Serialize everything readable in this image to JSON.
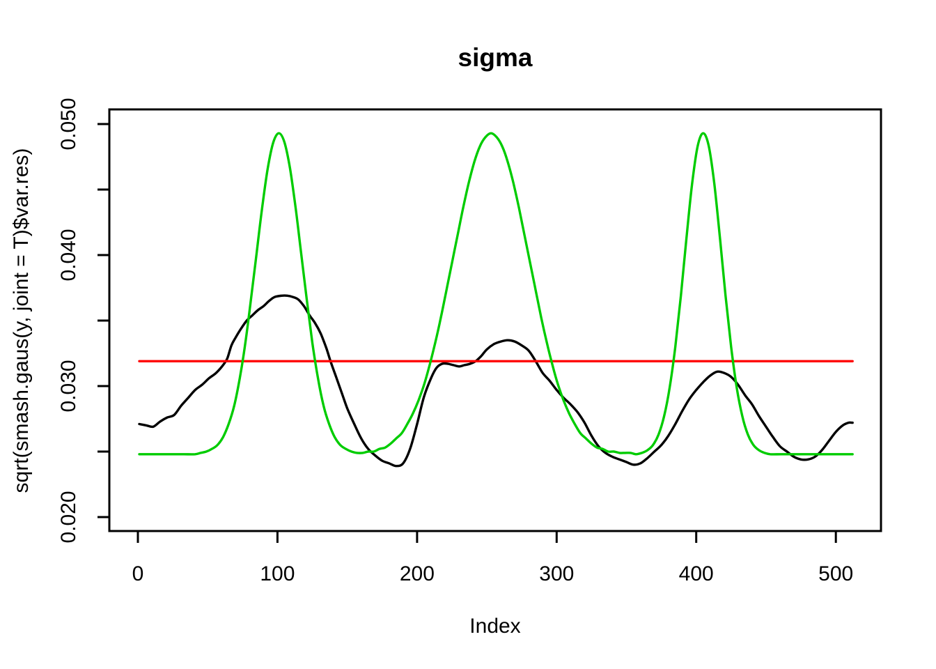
{
  "window": {
    "background": "#ffffff"
  },
  "chart_data": {
    "type": "line",
    "title": "sigma",
    "xlabel": "Index",
    "ylabel": "sqrt(smash.gaus(y, joint = T)$var.res)",
    "grid": false,
    "legend": "none",
    "axes": {
      "x": {
        "range": [
          -20.5,
          532.6
        ],
        "ticks": [
          {
            "value": 0,
            "label": "0"
          },
          {
            "value": 100,
            "label": "100"
          },
          {
            "value": 200,
            "label": "200"
          },
          {
            "value": 300,
            "label": "300"
          },
          {
            "value": 400,
            "label": "400"
          },
          {
            "value": 500,
            "label": "500"
          }
        ]
      },
      "y": {
        "range": [
          0.0189,
          0.0511
        ],
        "tick_marks": [
          0.02,
          0.025,
          0.03,
          0.035,
          0.04,
          0.045,
          0.05
        ],
        "labeled_ticks": [
          {
            "value": 0.02,
            "label": "0.020"
          },
          {
            "value": 0.03,
            "label": "0.030"
          },
          {
            "value": 0.04,
            "label": "0.040"
          },
          {
            "value": 0.05,
            "label": "0.050"
          }
        ]
      }
    },
    "series": [
      {
        "name": "black-estimated-sigma-line",
        "color": "#000000",
        "points": [
          [
            1,
            0.0271
          ],
          [
            6,
            0.027
          ],
          [
            11,
            0.0269
          ],
          [
            16,
            0.0273
          ],
          [
            21,
            0.0276
          ],
          [
            26,
            0.0278
          ],
          [
            31,
            0.0285
          ],
          [
            36,
            0.0291
          ],
          [
            41,
            0.0297
          ],
          [
            46,
            0.0301
          ],
          [
            51,
            0.0306
          ],
          [
            56,
            0.031
          ],
          [
            61,
            0.0316
          ],
          [
            64,
            0.0321
          ],
          [
            67,
            0.0331
          ],
          [
            70,
            0.0337
          ],
          [
            74,
            0.0344
          ],
          [
            78,
            0.035
          ],
          [
            82,
            0.0354
          ],
          [
            86,
            0.0358
          ],
          [
            90,
            0.0361
          ],
          [
            94,
            0.0365
          ],
          [
            98,
            0.0368
          ],
          [
            103,
            0.0369
          ],
          [
            107,
            0.0369
          ],
          [
            111,
            0.0368
          ],
          [
            115,
            0.0366
          ],
          [
            119,
            0.0361
          ],
          [
            123,
            0.0354
          ],
          [
            127,
            0.0348
          ],
          [
            131,
            0.034
          ],
          [
            135,
            0.0329
          ],
          [
            138,
            0.0319
          ],
          [
            142,
            0.0307
          ],
          [
            146,
            0.0295
          ],
          [
            150,
            0.0283
          ],
          [
            155,
            0.0271
          ],
          [
            160,
            0.026
          ],
          [
            165,
            0.0252
          ],
          [
            170,
            0.0247
          ],
          [
            175,
            0.0243
          ],
          [
            180,
            0.0241
          ],
          [
            185,
            0.0239
          ],
          [
            190,
            0.0241
          ],
          [
            195,
            0.0252
          ],
          [
            200,
            0.0271
          ],
          [
            205,
            0.0292
          ],
          [
            210,
            0.0306
          ],
          [
            214,
            0.0314
          ],
          [
            218,
            0.0317
          ],
          [
            222,
            0.0317
          ],
          [
            226,
            0.0316
          ],
          [
            230,
            0.0315
          ],
          [
            234,
            0.0316
          ],
          [
            238,
            0.0317
          ],
          [
            242,
            0.0319
          ],
          [
            246,
            0.0323
          ],
          [
            250,
            0.0328
          ],
          [
            255,
            0.0332
          ],
          [
            260,
            0.0334
          ],
          [
            265,
            0.0335
          ],
          [
            270,
            0.0334
          ],
          [
            275,
            0.0331
          ],
          [
            280,
            0.0327
          ],
          [
            285,
            0.0319
          ],
          [
            290,
            0.031
          ],
          [
            295,
            0.0304
          ],
          [
            300,
            0.0297
          ],
          [
            305,
            0.0291
          ],
          [
            310,
            0.0286
          ],
          [
            315,
            0.028
          ],
          [
            320,
            0.0272
          ],
          [
            325,
            0.0262
          ],
          [
            330,
            0.0254
          ],
          [
            335,
            0.0249
          ],
          [
            340,
            0.0246
          ],
          [
            345,
            0.0244
          ],
          [
            350,
            0.0242
          ],
          [
            355,
            0.024
          ],
          [
            360,
            0.0241
          ],
          [
            365,
            0.0245
          ],
          [
            370,
            0.025
          ],
          [
            375,
            0.0255
          ],
          [
            380,
            0.0262
          ],
          [
            385,
            0.0271
          ],
          [
            390,
            0.0281
          ],
          [
            395,
            0.029
          ],
          [
            400,
            0.0297
          ],
          [
            405,
            0.0303
          ],
          [
            410,
            0.0308
          ],
          [
            415,
            0.0311
          ],
          [
            420,
            0.031
          ],
          [
            425,
            0.0307
          ],
          [
            430,
            0.0301
          ],
          [
            435,
            0.0293
          ],
          [
            440,
            0.0286
          ],
          [
            445,
            0.0277
          ],
          [
            450,
            0.0269
          ],
          [
            455,
            0.0261
          ],
          [
            460,
            0.0254
          ],
          [
            465,
            0.025
          ],
          [
            470,
            0.0246
          ],
          [
            475,
            0.0244
          ],
          [
            480,
            0.0244
          ],
          [
            485,
            0.0246
          ],
          [
            490,
            0.0251
          ],
          [
            495,
            0.0258
          ],
          [
            500,
            0.0265
          ],
          [
            505,
            0.027
          ],
          [
            509,
            0.0272
          ],
          [
            512,
            0.0272
          ]
        ]
      },
      {
        "name": "green-true-sigma-line",
        "color": "#00CC00",
        "points": [
          [
            1,
            0.0248
          ],
          [
            9,
            0.0248
          ],
          [
            17,
            0.0248
          ],
          [
            25,
            0.0248
          ],
          [
            33,
            0.0248
          ],
          [
            41,
            0.0248
          ],
          [
            45,
            0.0249
          ],
          [
            49,
            0.025
          ],
          [
            53,
            0.0252
          ],
          [
            57,
            0.0255
          ],
          [
            61,
            0.0261
          ],
          [
            65,
            0.0271
          ],
          [
            69,
            0.0285
          ],
          [
            73,
            0.0306
          ],
          [
            77,
            0.0333
          ],
          [
            81,
            0.0366
          ],
          [
            85,
            0.0401
          ],
          [
            89,
            0.0436
          ],
          [
            93,
            0.0466
          ],
          [
            97,
            0.0486
          ],
          [
            101,
            0.0493
          ],
          [
            105,
            0.0486
          ],
          [
            109,
            0.0466
          ],
          [
            113,
            0.0436
          ],
          [
            117,
            0.0401
          ],
          [
            121,
            0.0366
          ],
          [
            125,
            0.0333
          ],
          [
            129,
            0.0306
          ],
          [
            133,
            0.0285
          ],
          [
            137,
            0.0271
          ],
          [
            141,
            0.0261
          ],
          [
            145,
            0.0255
          ],
          [
            149,
            0.0252
          ],
          [
            153,
            0.025
          ],
          [
            157,
            0.0249
          ],
          [
            161,
            0.0249
          ],
          [
            165,
            0.025
          ],
          [
            169,
            0.025
          ],
          [
            173,
            0.0252
          ],
          [
            177,
            0.0253
          ],
          [
            181,
            0.0256
          ],
          [
            185,
            0.026
          ],
          [
            189,
            0.0264
          ],
          [
            193,
            0.0271
          ],
          [
            197,
            0.0279
          ],
          [
            201,
            0.0289
          ],
          [
            205,
            0.0301
          ],
          [
            209,
            0.0316
          ],
          [
            213,
            0.0333
          ],
          [
            217,
            0.0352
          ],
          [
            221,
            0.0373
          ],
          [
            225,
            0.0394
          ],
          [
            229,
            0.0415
          ],
          [
            233,
            0.0436
          ],
          [
            237,
            0.0455
          ],
          [
            241,
            0.0471
          ],
          [
            245,
            0.0483
          ],
          [
            249,
            0.049
          ],
          [
            253,
            0.0493
          ],
          [
            257,
            0.049
          ],
          [
            261,
            0.0483
          ],
          [
            265,
            0.0471
          ],
          [
            269,
            0.0455
          ],
          [
            273,
            0.0436
          ],
          [
            277,
            0.0415
          ],
          [
            281,
            0.0394
          ],
          [
            285,
            0.0373
          ],
          [
            289,
            0.0352
          ],
          [
            293,
            0.0333
          ],
          [
            297,
            0.0316
          ],
          [
            301,
            0.0301
          ],
          [
            305,
            0.0289
          ],
          [
            309,
            0.0279
          ],
          [
            313,
            0.0271
          ],
          [
            317,
            0.0264
          ],
          [
            321,
            0.026
          ],
          [
            325,
            0.0256
          ],
          [
            329,
            0.0253
          ],
          [
            333,
            0.0252
          ],
          [
            337,
            0.025
          ],
          [
            341,
            0.025
          ],
          [
            345,
            0.0249
          ],
          [
            349,
            0.0249
          ],
          [
            353,
            0.0249
          ],
          [
            357,
            0.0248
          ],
          [
            361,
            0.0249
          ],
          [
            365,
            0.0251
          ],
          [
            369,
            0.0255
          ],
          [
            373,
            0.0263
          ],
          [
            377,
            0.0277
          ],
          [
            381,
            0.0299
          ],
          [
            385,
            0.033
          ],
          [
            389,
            0.0369
          ],
          [
            393,
            0.0413
          ],
          [
            397,
            0.0454
          ],
          [
            401,
            0.0483
          ],
          [
            405,
            0.0493
          ],
          [
            409,
            0.0483
          ],
          [
            413,
            0.0454
          ],
          [
            417,
            0.0413
          ],
          [
            421,
            0.0369
          ],
          [
            425,
            0.033
          ],
          [
            429,
            0.0299
          ],
          [
            433,
            0.0277
          ],
          [
            437,
            0.0263
          ],
          [
            441,
            0.0255
          ],
          [
            445,
            0.0251
          ],
          [
            449,
            0.0249
          ],
          [
            453,
            0.0248
          ],
          [
            461,
            0.0248
          ],
          [
            473,
            0.0248
          ],
          [
            485,
            0.0248
          ],
          [
            497,
            0.0248
          ],
          [
            505,
            0.0248
          ],
          [
            512,
            0.0248
          ]
        ]
      },
      {
        "name": "red-constant-sigma-line",
        "color": "#FF0000",
        "points": [
          [
            1,
            0.0319
          ],
          [
            512,
            0.0319
          ]
        ]
      }
    ]
  }
}
